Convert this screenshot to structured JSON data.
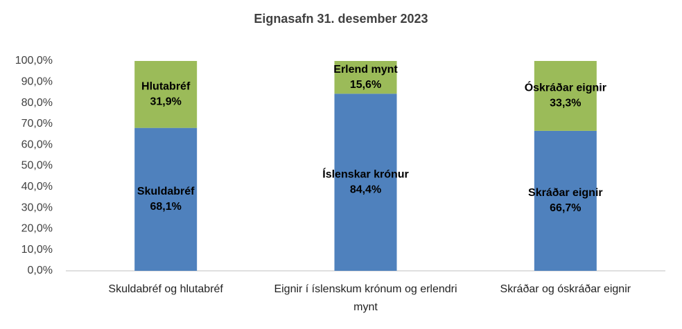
{
  "chart_data": {
    "type": "stacked_bar",
    "title": "Eignasafn 31. desember 2023",
    "categories": [
      "Skuldabréf og hlutabréf",
      "Eignir í íslenskum krónum og erlendri mynt",
      "Skráðar og óskráðar eignir"
    ],
    "series": [
      {
        "color": "#4f81bd",
        "values": [
          68.1,
          84.4,
          66.7
        ],
        "segment_labels": [
          "Skuldabréf",
          "Íslenskar krónur",
          "Skráðar eignir"
        ],
        "value_labels": [
          "68,1%",
          "84,4%",
          "66,7%"
        ]
      },
      {
        "color": "#9bbb59",
        "values": [
          31.9,
          15.6,
          33.3
        ],
        "segment_labels": [
          "Hlutabréf",
          "Erlend mynt",
          "Óskráðar eignir"
        ],
        "value_labels": [
          "31,9%",
          "15,6%",
          "33,3%"
        ]
      }
    ],
    "ylim": [
      0,
      100
    ],
    "yticks": [
      {
        "value": 0,
        "label": "0,0%"
      },
      {
        "value": 10,
        "label": "10,0%"
      },
      {
        "value": 20,
        "label": "20,0%"
      },
      {
        "value": 30,
        "label": "30,0%"
      },
      {
        "value": 40,
        "label": "40,0%"
      },
      {
        "value": 50,
        "label": "50,0%"
      },
      {
        "value": 60,
        "label": "60,0%"
      },
      {
        "value": 70,
        "label": "70,0%"
      },
      {
        "value": 80,
        "label": "80,0%"
      },
      {
        "value": 90,
        "label": "90,0%"
      },
      {
        "value": 100,
        "label": "100,0%"
      }
    ],
    "grid": false
  }
}
